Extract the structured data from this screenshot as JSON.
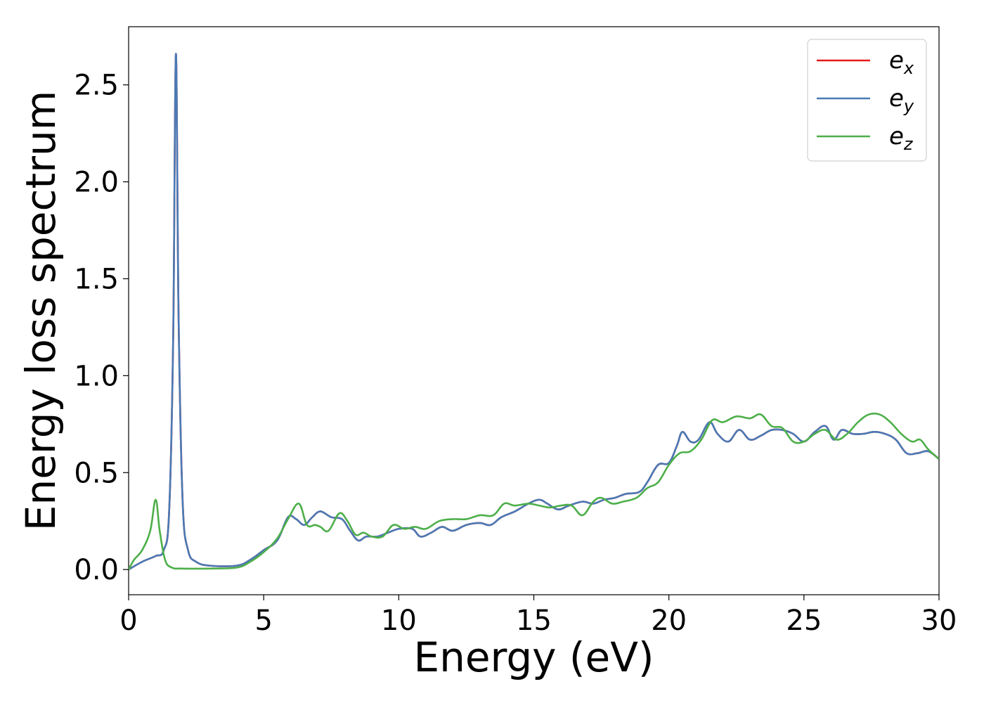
{
  "chart_data": {
    "type": "line",
    "xlabel": "Energy (eV)",
    "ylabel": "Energy loss spectrum",
    "xlim": [
      0,
      30
    ],
    "ylim": [
      -0.13,
      2.8
    ],
    "xticks": [
      0,
      5,
      10,
      15,
      20,
      25,
      30
    ],
    "xtick_labels": [
      "0",
      "5",
      "10",
      "15",
      "20",
      "25",
      "30"
    ],
    "yticks": [
      0.0,
      0.5,
      1.0,
      1.5,
      2.0,
      2.5
    ],
    "ytick_labels": [
      "0.0",
      "0.5",
      "1.0",
      "1.5",
      "2.0",
      "2.5"
    ],
    "grid": false,
    "legend_position": "top-right",
    "series": [
      {
        "name": "e_x",
        "label_base": "e",
        "label_sub": "x",
        "color": "#e41a1c",
        "points": [
          [
            0,
            0
          ],
          [
            0.5,
            0.04
          ],
          [
            1,
            0.07
          ],
          [
            1.3,
            0.1
          ],
          [
            1.5,
            0.3
          ],
          [
            1.65,
            1.2
          ],
          [
            1.75,
            2.66
          ],
          [
            1.85,
            1.3
          ],
          [
            2,
            0.35
          ],
          [
            2.2,
            0.1
          ],
          [
            2.5,
            0.04
          ],
          [
            3,
            0.02
          ],
          [
            4,
            0.02
          ],
          [
            4.5,
            0.05
          ],
          [
            5,
            0.1
          ],
          [
            5.5,
            0.15
          ],
          [
            5.9,
            0.27
          ],
          [
            6.2,
            0.26
          ],
          [
            6.5,
            0.23
          ],
          [
            6.8,
            0.27
          ],
          [
            7.1,
            0.3
          ],
          [
            7.5,
            0.27
          ],
          [
            7.9,
            0.26
          ],
          [
            8.2,
            0.2
          ],
          [
            8.5,
            0.15
          ],
          [
            8.8,
            0.17
          ],
          [
            9.2,
            0.17
          ],
          [
            9.6,
            0.19
          ],
          [
            10,
            0.21
          ],
          [
            10.5,
            0.21
          ],
          [
            10.8,
            0.17
          ],
          [
            11.2,
            0.19
          ],
          [
            11.6,
            0.22
          ],
          [
            12,
            0.2
          ],
          [
            12.5,
            0.23
          ],
          [
            13,
            0.24
          ],
          [
            13.4,
            0.23
          ],
          [
            13.8,
            0.27
          ],
          [
            14.3,
            0.3
          ],
          [
            14.8,
            0.34
          ],
          [
            15.2,
            0.36
          ],
          [
            15.5,
            0.34
          ],
          [
            15.9,
            0.31
          ],
          [
            16.3,
            0.33
          ],
          [
            16.8,
            0.35
          ],
          [
            17.2,
            0.34
          ],
          [
            17.6,
            0.36
          ],
          [
            18,
            0.37
          ],
          [
            18.4,
            0.39
          ],
          [
            18.9,
            0.4
          ],
          [
            19.2,
            0.45
          ],
          [
            19.6,
            0.54
          ],
          [
            20,
            0.55
          ],
          [
            20.3,
            0.64
          ],
          [
            20.5,
            0.71
          ],
          [
            20.8,
            0.66
          ],
          [
            21.1,
            0.67
          ],
          [
            21.5,
            0.76
          ],
          [
            21.8,
            0.7
          ],
          [
            22.2,
            0.66
          ],
          [
            22.6,
            0.72
          ],
          [
            23,
            0.67
          ],
          [
            23.4,
            0.69
          ],
          [
            23.8,
            0.72
          ],
          [
            24.2,
            0.72
          ],
          [
            24.6,
            0.7
          ],
          [
            25,
            0.66
          ],
          [
            25.4,
            0.71
          ],
          [
            25.8,
            0.74
          ],
          [
            26.1,
            0.67
          ],
          [
            26.4,
            0.72
          ],
          [
            26.8,
            0.7
          ],
          [
            27.2,
            0.7
          ],
          [
            27.6,
            0.71
          ],
          [
            28,
            0.7
          ],
          [
            28.4,
            0.67
          ],
          [
            28.8,
            0.6
          ],
          [
            29.2,
            0.6
          ],
          [
            29.6,
            0.61
          ],
          [
            30,
            0.57
          ]
        ]
      },
      {
        "name": "e_y",
        "label_base": "e",
        "label_sub": "y",
        "color": "#4a7ab5",
        "points": [
          [
            0,
            0
          ],
          [
            0.5,
            0.04
          ],
          [
            1,
            0.07
          ],
          [
            1.3,
            0.1
          ],
          [
            1.5,
            0.3
          ],
          [
            1.65,
            1.2
          ],
          [
            1.75,
            2.66
          ],
          [
            1.85,
            1.3
          ],
          [
            2,
            0.35
          ],
          [
            2.2,
            0.1
          ],
          [
            2.5,
            0.04
          ],
          [
            3,
            0.02
          ],
          [
            4,
            0.02
          ],
          [
            4.5,
            0.05
          ],
          [
            5,
            0.1
          ],
          [
            5.5,
            0.15
          ],
          [
            5.9,
            0.27
          ],
          [
            6.2,
            0.26
          ],
          [
            6.5,
            0.23
          ],
          [
            6.8,
            0.27
          ],
          [
            7.1,
            0.3
          ],
          [
            7.5,
            0.27
          ],
          [
            7.9,
            0.26
          ],
          [
            8.2,
            0.2
          ],
          [
            8.5,
            0.15
          ],
          [
            8.8,
            0.17
          ],
          [
            9.2,
            0.17
          ],
          [
            9.6,
            0.19
          ],
          [
            10,
            0.21
          ],
          [
            10.5,
            0.21
          ],
          [
            10.8,
            0.17
          ],
          [
            11.2,
            0.19
          ],
          [
            11.6,
            0.22
          ],
          [
            12,
            0.2
          ],
          [
            12.5,
            0.23
          ],
          [
            13,
            0.24
          ],
          [
            13.4,
            0.23
          ],
          [
            13.8,
            0.27
          ],
          [
            14.3,
            0.3
          ],
          [
            14.8,
            0.34
          ],
          [
            15.2,
            0.36
          ],
          [
            15.5,
            0.34
          ],
          [
            15.9,
            0.31
          ],
          [
            16.3,
            0.33
          ],
          [
            16.8,
            0.35
          ],
          [
            17.2,
            0.34
          ],
          [
            17.6,
            0.36
          ],
          [
            18,
            0.37
          ],
          [
            18.4,
            0.39
          ],
          [
            18.9,
            0.4
          ],
          [
            19.2,
            0.45
          ],
          [
            19.6,
            0.54
          ],
          [
            20,
            0.55
          ],
          [
            20.3,
            0.64
          ],
          [
            20.5,
            0.71
          ],
          [
            20.8,
            0.66
          ],
          [
            21.1,
            0.67
          ],
          [
            21.5,
            0.76
          ],
          [
            21.8,
            0.7
          ],
          [
            22.2,
            0.66
          ],
          [
            22.6,
            0.72
          ],
          [
            23,
            0.67
          ],
          [
            23.4,
            0.69
          ],
          [
            23.8,
            0.72
          ],
          [
            24.2,
            0.72
          ],
          [
            24.6,
            0.7
          ],
          [
            25,
            0.66
          ],
          [
            25.4,
            0.71
          ],
          [
            25.8,
            0.74
          ],
          [
            26.1,
            0.67
          ],
          [
            26.4,
            0.72
          ],
          [
            26.8,
            0.7
          ],
          [
            27.2,
            0.7
          ],
          [
            27.6,
            0.71
          ],
          [
            28,
            0.7
          ],
          [
            28.4,
            0.67
          ],
          [
            28.8,
            0.6
          ],
          [
            29.2,
            0.6
          ],
          [
            29.6,
            0.61
          ],
          [
            30,
            0.57
          ]
        ]
      },
      {
        "name": "e_z",
        "label_base": "e",
        "label_sub": "z",
        "color": "#4daf4a",
        "points": [
          [
            0,
            0
          ],
          [
            0.2,
            0.05
          ],
          [
            0.5,
            0.1
          ],
          [
            0.8,
            0.2
          ],
          [
            1,
            0.36
          ],
          [
            1.15,
            0.2
          ],
          [
            1.35,
            0.05
          ],
          [
            1.6,
            0.01
          ],
          [
            2,
            0.005
          ],
          [
            3,
            0.005
          ],
          [
            4,
            0.01
          ],
          [
            4.5,
            0.04
          ],
          [
            5,
            0.09
          ],
          [
            5.5,
            0.16
          ],
          [
            5.9,
            0.26
          ],
          [
            6.3,
            0.34
          ],
          [
            6.6,
            0.23
          ],
          [
            6.9,
            0.23
          ],
          [
            7.1,
            0.22
          ],
          [
            7.4,
            0.2
          ],
          [
            7.8,
            0.29
          ],
          [
            8.1,
            0.25
          ],
          [
            8.4,
            0.18
          ],
          [
            8.7,
            0.19
          ],
          [
            9,
            0.17
          ],
          [
            9.4,
            0.17
          ],
          [
            9.8,
            0.23
          ],
          [
            10.2,
            0.21
          ],
          [
            10.6,
            0.22
          ],
          [
            11,
            0.21
          ],
          [
            11.5,
            0.25
          ],
          [
            12,
            0.26
          ],
          [
            12.5,
            0.26
          ],
          [
            13,
            0.28
          ],
          [
            13.5,
            0.28
          ],
          [
            13.9,
            0.34
          ],
          [
            14.3,
            0.33
          ],
          [
            14.8,
            0.34
          ],
          [
            15.2,
            0.33
          ],
          [
            15.6,
            0.32
          ],
          [
            16,
            0.33
          ],
          [
            16.4,
            0.33
          ],
          [
            16.8,
            0.28
          ],
          [
            17.2,
            0.35
          ],
          [
            17.5,
            0.37
          ],
          [
            17.9,
            0.34
          ],
          [
            18.3,
            0.35
          ],
          [
            18.8,
            0.37
          ],
          [
            19.2,
            0.42
          ],
          [
            19.6,
            0.45
          ],
          [
            20,
            0.54
          ],
          [
            20.4,
            0.6
          ],
          [
            20.8,
            0.61
          ],
          [
            21.2,
            0.67
          ],
          [
            21.6,
            0.77
          ],
          [
            22,
            0.76
          ],
          [
            22.5,
            0.79
          ],
          [
            23,
            0.78
          ],
          [
            23.4,
            0.8
          ],
          [
            23.8,
            0.74
          ],
          [
            24.2,
            0.73
          ],
          [
            24.6,
            0.66
          ],
          [
            25,
            0.66
          ],
          [
            25.4,
            0.7
          ],
          [
            25.8,
            0.72
          ],
          [
            26.2,
            0.67
          ],
          [
            26.6,
            0.7
          ],
          [
            27,
            0.76
          ],
          [
            27.4,
            0.8
          ],
          [
            27.8,
            0.8
          ],
          [
            28.2,
            0.76
          ],
          [
            28.6,
            0.7
          ],
          [
            29,
            0.66
          ],
          [
            29.3,
            0.67
          ],
          [
            29.6,
            0.62
          ],
          [
            30,
            0.57
          ]
        ]
      }
    ]
  }
}
